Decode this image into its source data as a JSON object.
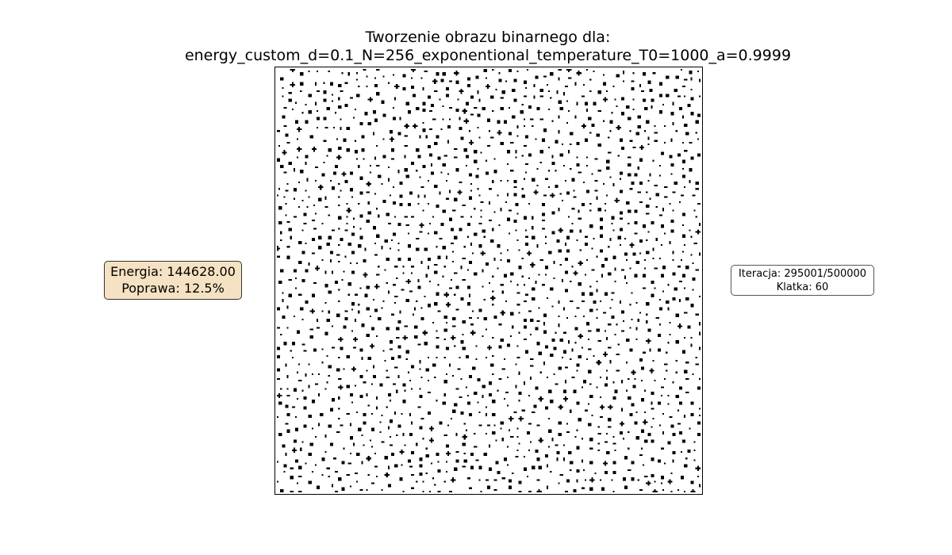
{
  "chart_data": {
    "type": "heatmap",
    "title": "Tworzenie obrazu binarnego dla:",
    "subtitle": "energy_custom_d=0.1_N=256_exponentional_temperature_T0=1000_a=0.9999",
    "grid": false,
    "colormap": "binary",
    "energy_label": "Energia: 144628.00",
    "improvement_label": "Poprawa: 12.5%",
    "iteration_label": "Iteracja: 295001/500000",
    "frame_label": "Klatka: 60",
    "energy": 144628.0,
    "improvement_percent": 12.5,
    "iteration": 295001,
    "iterations_total": 500000,
    "frame": 60,
    "N": 256,
    "d": 0.1,
    "T0": 1000,
    "a": 0.9999,
    "estimated_black_fraction": 0.1
  },
  "colors": {
    "energy_box_bg": "#f5e2c2",
    "pixel_on": "#000000",
    "pixel_off": "#ffffff"
  }
}
